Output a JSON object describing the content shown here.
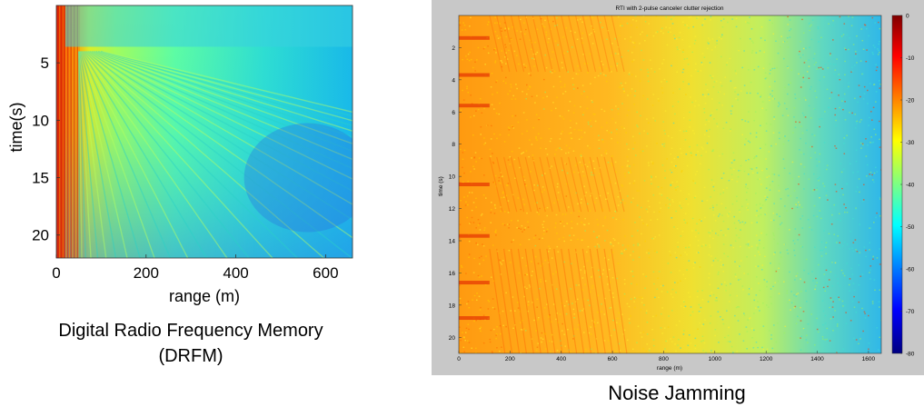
{
  "charts": {
    "drfm": {
      "xlabel": "range (m)",
      "ylabel": "time(s)",
      "x_ticks": [
        "0",
        "200",
        "400",
        "600"
      ],
      "y_ticks": [
        "5",
        "10",
        "15",
        "20"
      ],
      "caption_line1": "Digital Radio Frequency Memory",
      "caption_line2": "(DRFM)"
    },
    "noise": {
      "title": "RTI with 2-pulse canceler clutter rejection",
      "xlabel": "range (m)",
      "ylabel": "time (s)",
      "x_ticks": [
        "0",
        "200",
        "400",
        "600",
        "800",
        "1000",
        "1200",
        "1400",
        "1600"
      ],
      "y_ticks": [
        "2",
        "4",
        "6",
        "8",
        "10",
        "12",
        "14",
        "16",
        "18",
        "20"
      ],
      "colorbar_ticks": [
        "0",
        "-10",
        "-20",
        "-30",
        "-40",
        "-50",
        "-60",
        "-70",
        "-80"
      ],
      "caption": "Noise Jamming"
    }
  },
  "chart_data": [
    {
      "type": "heatmap",
      "xlabel": "range (m)",
      "ylabel": "time(s)",
      "xlim": [
        0,
        660
      ],
      "ylim": [
        22,
        0
      ],
      "x_ticks": [
        0,
        200,
        400,
        600
      ],
      "y_ticks": [
        5,
        10,
        15,
        20
      ],
      "colormap": "jet"
    },
    {
      "type": "heatmap",
      "title": "RTI with 2-pulse canceler clutter rejection",
      "xlabel": "range (m)",
      "ylabel": "time (s)",
      "xlim": [
        0,
        1650
      ],
      "ylim": [
        21,
        0
      ],
      "x_ticks": [
        0,
        200,
        400,
        600,
        800,
        1000,
        1200,
        1400,
        1600
      ],
      "y_ticks": [
        2,
        4,
        6,
        8,
        10,
        12,
        14,
        16,
        18,
        20
      ],
      "colorbar_range": [
        -80,
        0
      ],
      "colorbar_ticks": [
        0,
        -10,
        -20,
        -30,
        -40,
        -50,
        -60,
        -70,
        -80
      ],
      "colormap": "jet"
    }
  ]
}
